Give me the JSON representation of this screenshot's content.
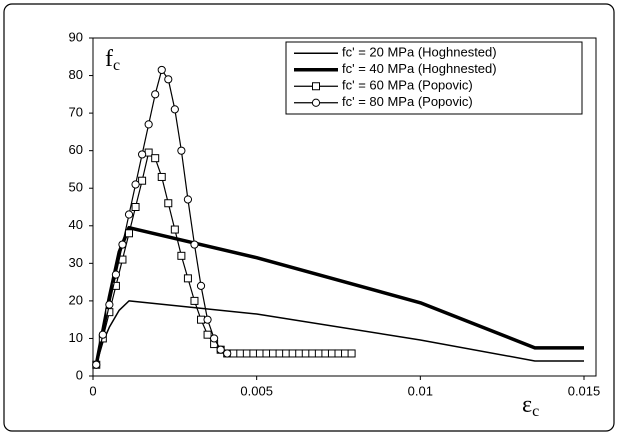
{
  "chart_data": {
    "type": "line",
    "ylabel": "f",
    "ylabel_subscript": "c",
    "xlabel": "ε",
    "xlabel_subscript": "c",
    "xlim": [
      0,
      0.015
    ],
    "xticks": [
      0,
      0.005,
      0.01,
      0.015
    ],
    "ylim": [
      0,
      90
    ],
    "yticks": [
      0,
      10,
      20,
      30,
      40,
      50,
      60,
      70,
      80,
      90
    ],
    "grid": false,
    "legend": "upper right",
    "series": [
      {
        "name": "fc' = 20 MPa (Hoghnested)",
        "color": "#000000",
        "line_width": 1.5,
        "marker": "none",
        "x": [
          0.0001,
          0.0003,
          0.0005,
          0.0008,
          0.0011,
          0.005,
          0.01,
          0.0135,
          0.015
        ],
        "values": [
          3,
          9,
          13,
          17.5,
          20,
          16.5,
          9.6,
          4,
          4
        ]
      },
      {
        "name": "fc' = 40 MPa (Hoghnested)",
        "color": "#000000",
        "line_width": 3.5,
        "marker": "none",
        "x": [
          0.0001,
          0.0003,
          0.0005,
          0.0008,
          0.0011,
          0.005,
          0.01,
          0.0135,
          0.015
        ],
        "values": [
          3,
          12,
          21,
          33,
          39.5,
          31.5,
          19.5,
          7.5,
          7.5
        ]
      },
      {
        "name": "fc' = 60 MPa (Popovic)",
        "color": "#000000",
        "line_width": 1.2,
        "marker": "square",
        "x": [
          0.0001,
          0.0003,
          0.0005,
          0.0007,
          0.0009,
          0.0011,
          0.0013,
          0.0015,
          0.0017,
          0.0019,
          0.0021,
          0.0023,
          0.0025,
          0.0027,
          0.0029,
          0.0031,
          0.0033,
          0.0035,
          0.0037,
          0.0039,
          0.0041,
          0.0043,
          0.0045,
          0.0047,
          0.0049,
          0.0051,
          0.0053,
          0.0055,
          0.0057,
          0.0059,
          0.0061,
          0.0063,
          0.0065,
          0.0067,
          0.0069,
          0.0071,
          0.0073,
          0.0075,
          0.0077,
          0.0079
        ],
        "values": [
          3,
          10,
          17,
          24,
          31,
          38,
          45,
          52,
          59.5,
          58,
          53,
          46,
          39,
          32,
          26,
          20,
          15,
          11,
          8.5,
          7,
          6,
          6,
          6,
          6,
          6,
          6,
          6,
          6,
          6,
          6,
          6,
          6,
          6,
          6,
          6,
          6,
          6,
          6,
          6,
          6
        ]
      },
      {
        "name": "fc' = 80 MPa (Popovic)",
        "color": "#000000",
        "line_width": 1.2,
        "marker": "circle",
        "x": [
          0.0001,
          0.0003,
          0.0005,
          0.0007,
          0.0009,
          0.0011,
          0.0013,
          0.0015,
          0.0017,
          0.0019,
          0.0021,
          0.0023,
          0.0025,
          0.0027,
          0.0029,
          0.0031,
          0.0033,
          0.0035,
          0.0037,
          0.0039,
          0.0041
        ],
        "values": [
          3,
          11,
          19,
          27,
          35,
          43,
          51,
          59,
          67,
          75,
          81.5,
          79,
          71,
          60,
          47,
          35,
          24,
          15,
          10,
          7,
          6
        ]
      }
    ]
  }
}
